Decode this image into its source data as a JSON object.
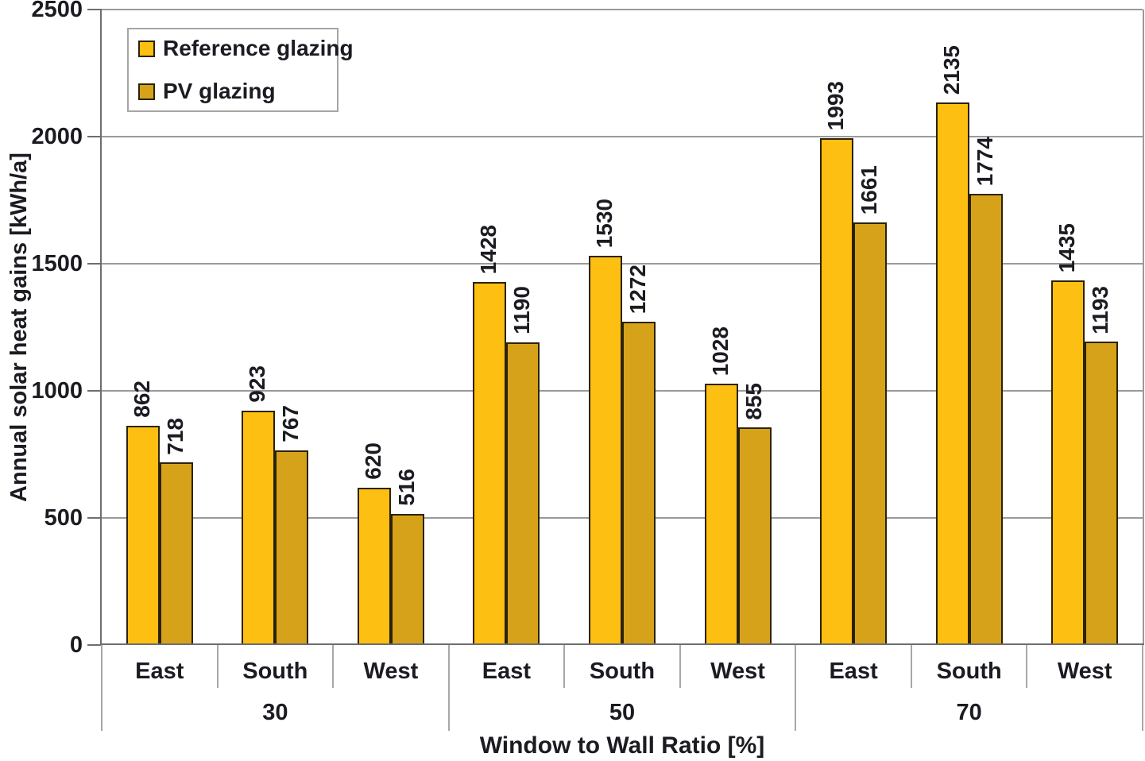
{
  "chart_data": {
    "type": "bar",
    "title": "",
    "xlabel": "Window to Wall Ratio [%]",
    "ylabel": "Annual solar heat gains [kWh/a]",
    "ylim": [
      0,
      2500
    ],
    "yticks": [
      0,
      500,
      1000,
      1500,
      2000,
      2500
    ],
    "grid": "horizontal",
    "legend_position": "top-left-inside",
    "groups": [
      "30",
      "50",
      "70"
    ],
    "categories_per_group": [
      "East",
      "South",
      "West"
    ],
    "x_cells": [
      "East",
      "South",
      "West",
      "East",
      "South",
      "West",
      "East",
      "South",
      "West"
    ],
    "series": [
      {
        "name": "Reference glazing",
        "color": "#FCBF12",
        "values": [
          862,
          923,
          620,
          1428,
          1530,
          1028,
          1993,
          2135,
          1435
        ]
      },
      {
        "name": "PV glazing",
        "color": "#D5A21A",
        "values": [
          718,
          767,
          516,
          1190,
          1272,
          855,
          1661,
          1774,
          1193
        ]
      }
    ],
    "value_labels": "rotated-90-above-bars"
  },
  "colors": {
    "text": "#1B1B22",
    "gridline": "#9A9A9A",
    "axis_line": "#6E6E6E",
    "category_separator": "#A8A8A8",
    "bar_outline": "#2B2206",
    "legend_border": "#A6A6A6",
    "background": "#FFFFFF"
  }
}
